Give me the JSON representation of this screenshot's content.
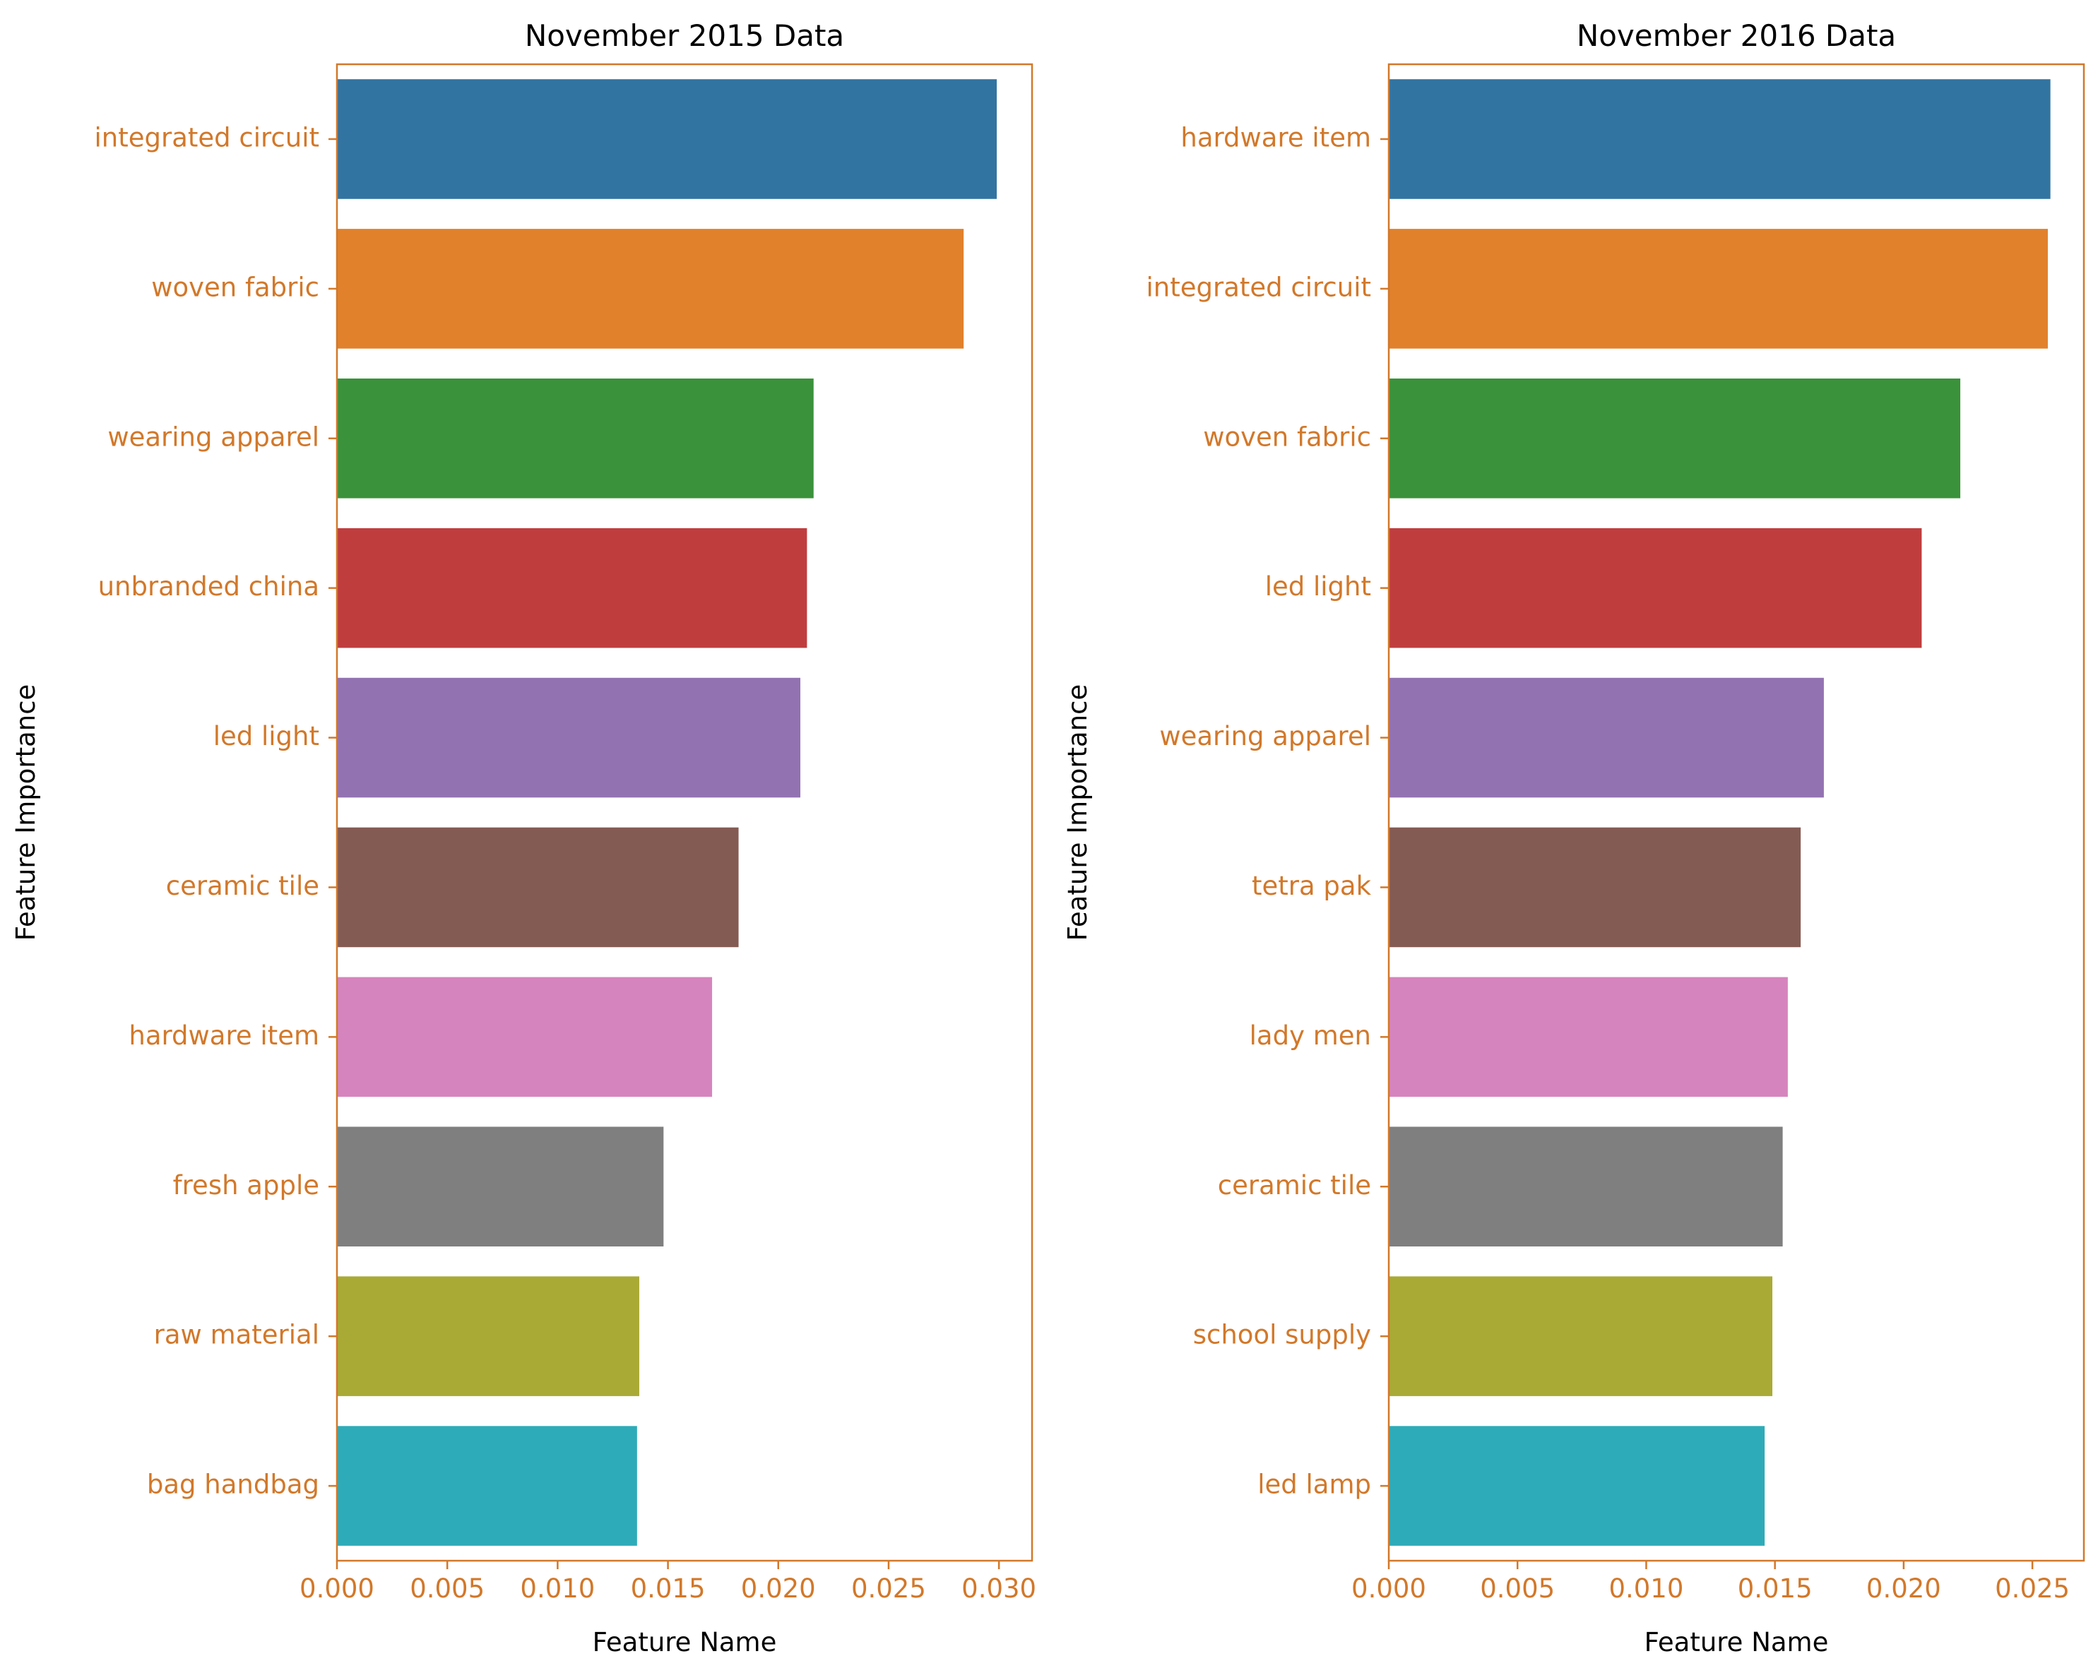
{
  "colors": {
    "axis_accent": "#d2782a",
    "text": "#000000",
    "palette": [
      "#3274a1",
      "#e1812c",
      "#3a923a",
      "#c03d3e",
      "#9372b2",
      "#845b53",
      "#d684bd",
      "#7f7f7f",
      "#a9aa35",
      "#2eabb8"
    ]
  },
  "chart_data": [
    {
      "type": "bar",
      "orientation": "horizontal",
      "title": "November 2015 Data",
      "xlabel": "Feature Name",
      "ylabel": "Feature Importance",
      "categories": [
        "integrated circuit",
        "woven fabric",
        "wearing apparel",
        "unbranded china",
        "led light",
        "ceramic tile",
        "hardware item",
        "fresh apple",
        "raw material",
        "bag handbag"
      ],
      "values": [
        0.0299,
        0.0284,
        0.0216,
        0.0213,
        0.021,
        0.0182,
        0.017,
        0.0148,
        0.0137,
        0.0136
      ],
      "xlim": [
        0,
        0.0315
      ],
      "xticks": [
        "0.000",
        "0.005",
        "0.010",
        "0.015",
        "0.020",
        "0.025",
        "0.030"
      ],
      "xtick_values": [
        0,
        0.005,
        0.01,
        0.015,
        0.02,
        0.025,
        0.03
      ],
      "grid": false
    },
    {
      "type": "bar",
      "orientation": "horizontal",
      "title": "November 2016 Data",
      "xlabel": "Feature Name",
      "ylabel": "Feature Importance",
      "categories": [
        "hardware item",
        "integrated circuit",
        "woven fabric",
        "led light",
        "wearing apparel",
        "tetra pak",
        "lady men",
        "ceramic tile",
        "school supply",
        "led lamp"
      ],
      "values": [
        0.0257,
        0.0256,
        0.0222,
        0.0207,
        0.0169,
        0.016,
        0.0155,
        0.0153,
        0.0149,
        0.0146
      ],
      "xlim": [
        0,
        0.027
      ],
      "xticks": [
        "0.000",
        "0.005",
        "0.010",
        "0.015",
        "0.020",
        "0.025"
      ],
      "xtick_values": [
        0,
        0.005,
        0.01,
        0.015,
        0.02,
        0.025
      ],
      "grid": false
    }
  ]
}
